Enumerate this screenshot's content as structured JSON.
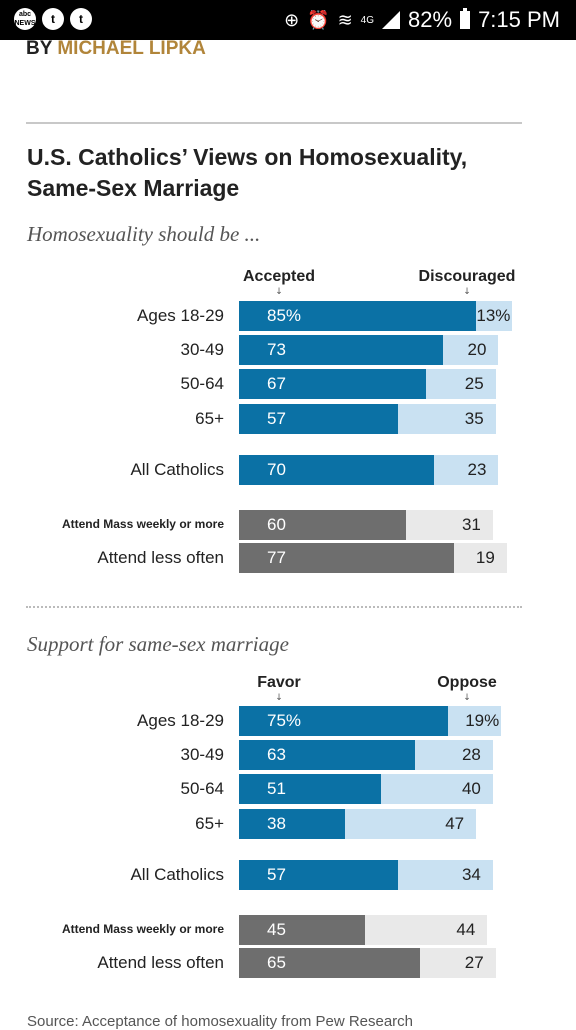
{
  "statusbar": {
    "left_icons": [
      "abc NEWS",
      "t",
      "t"
    ],
    "network": "4G",
    "battery": "82%",
    "time": "7:15 PM"
  },
  "byline": {
    "prefix": "BY",
    "author": "MICHAEL LIPKA"
  },
  "title": "U.S. Catholics’ Views on Homosexuality, Same-Sex Marriage",
  "source_text": "Source: Acceptance of homosexuality from Pew Research",
  "colors": {
    "blue": "#0b71a5",
    "light_blue": "#c9e1f2",
    "gray": "#6e6e6e",
    "light_gray": "#e9e9e9",
    "author": "#b1853a"
  },
  "chart_data": [
    {
      "type": "bar",
      "subtitle": "Homosexuality should be ...",
      "left_label": "Accepted",
      "right_label": "Discouraged",
      "categories": [
        "Ages 18-29",
        "30-49",
        "50-64",
        "65+",
        "All Catholics",
        "Attend Mass weekly or more",
        "Attend less often"
      ],
      "series": [
        {
          "name": "Accepted",
          "values": [
            85,
            73,
            67,
            57,
            70,
            60,
            77
          ],
          "labels": [
            "85%",
            "73",
            "67",
            "57",
            "70",
            "60",
            "77"
          ]
        },
        {
          "name": "Discouraged",
          "values": [
            13,
            20,
            25,
            35,
            23,
            31,
            19
          ],
          "labels": [
            "13%",
            "20",
            "25",
            "35",
            "23",
            "31",
            "19"
          ]
        }
      ]
    },
    {
      "type": "bar",
      "subtitle": "Support for same-sex marriage",
      "left_label": "Favor",
      "right_label": "Oppose",
      "categories": [
        "Ages 18-29",
        "30-49",
        "50-64",
        "65+",
        "All Catholics",
        "Attend Mass weekly or more",
        "Attend less often"
      ],
      "series": [
        {
          "name": "Favor",
          "values": [
            75,
            63,
            51,
            38,
            57,
            45,
            65
          ],
          "labels": [
            "75%",
            "63",
            "51",
            "38",
            "57",
            "45",
            "65"
          ]
        },
        {
          "name": "Oppose",
          "values": [
            19,
            28,
            40,
            47,
            34,
            44,
            27
          ],
          "labels": [
            "19%",
            "28",
            "40",
            "47",
            "34",
            "44",
            "27"
          ]
        }
      ]
    }
  ]
}
